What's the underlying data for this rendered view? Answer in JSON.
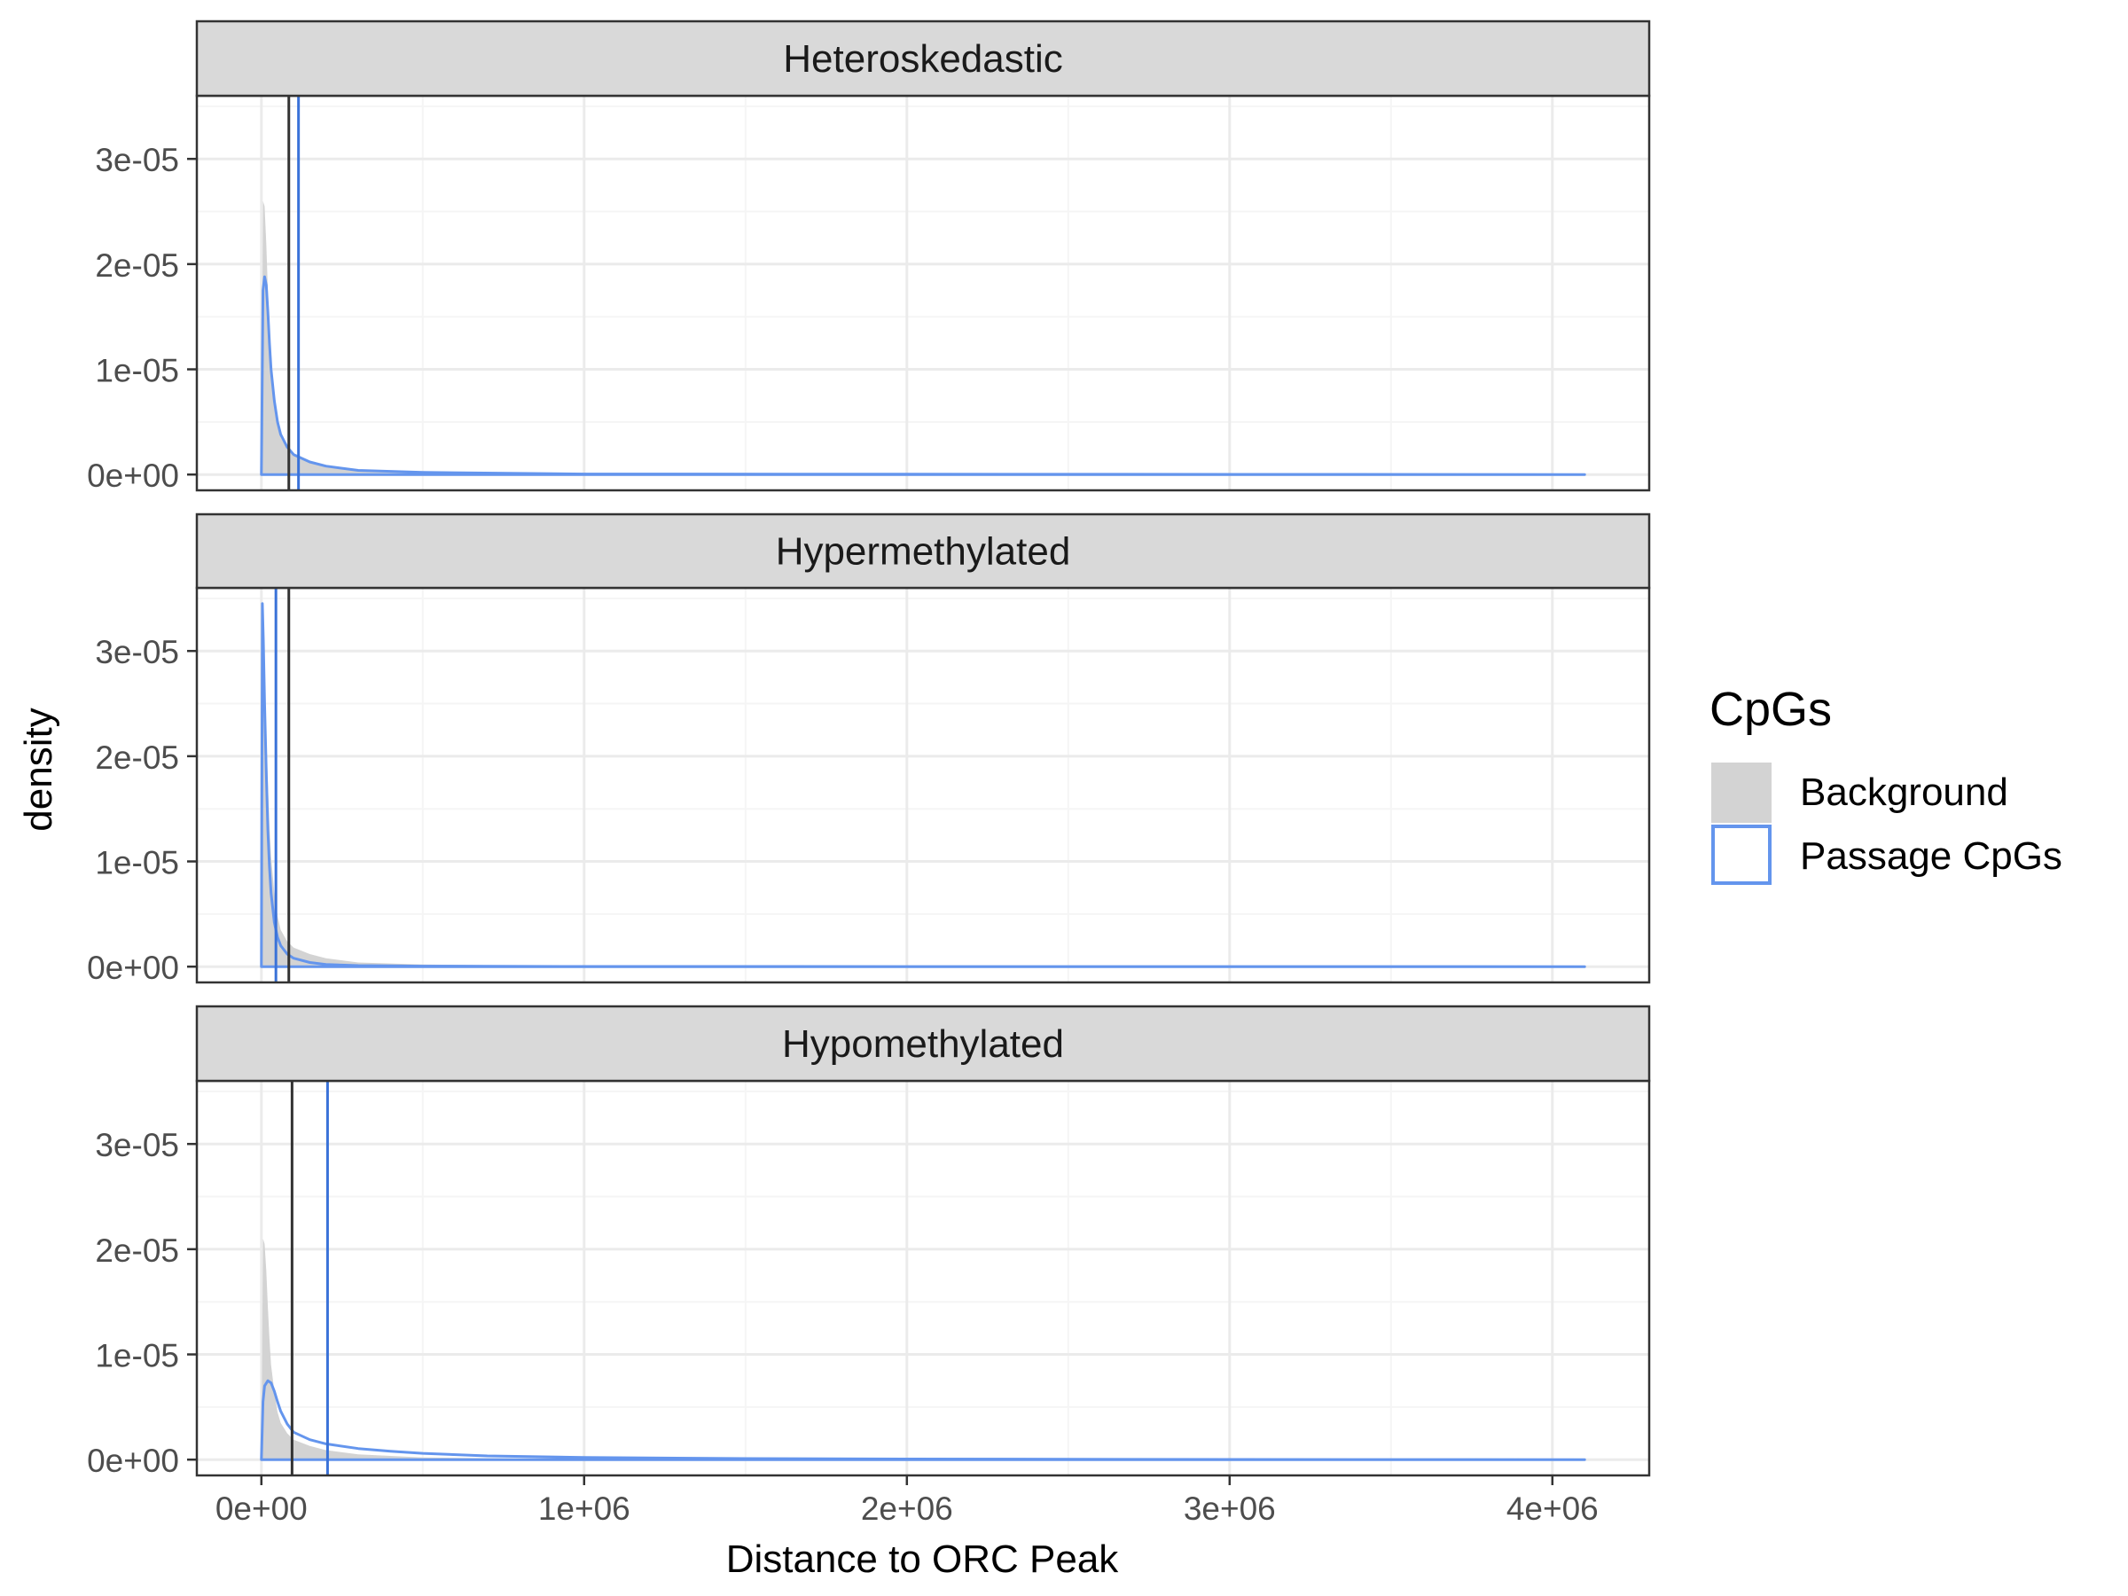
{
  "colors": {
    "background_fill": "#d3d3d3",
    "passage_line": "#6495ed",
    "background_median": "#333333",
    "passage_median": "#3a72d8",
    "strip_fill": "#d9d9d9",
    "grid_major": "#ebebeb",
    "grid_minor": "#f5f5f5",
    "panel_border": "#333333"
  },
  "chart_data": {
    "type": "area",
    "xlabel": "Distance to ORC Peak",
    "ylabel": "density",
    "xlim": [
      -200000,
      4300000
    ],
    "ylim": [
      -1.5e-06,
      3.6e-05
    ],
    "x_ticks": [
      0,
      1000000,
      2000000,
      3000000,
      4000000
    ],
    "x_tick_labels": [
      "0e+00",
      "1e+06",
      "2e+06",
      "3e+06",
      "4e+06"
    ],
    "y_ticks": [
      0,
      1e-05,
      2e-05,
      3e-05
    ],
    "y_tick_labels": [
      "0e+00",
      "1e-05",
      "2e-05",
      "3e-05"
    ],
    "grid": true,
    "legend": {
      "title": "CpGs",
      "position": "right",
      "entries": [
        "Background",
        "Passage CpGs"
      ]
    },
    "panels": [
      {
        "strip": "Heteroskedastic",
        "background_median": 85000,
        "passage_median": 115000,
        "series": [
          {
            "name": "Background",
            "x": [
              0,
              5000,
              10000,
              15000,
              20000,
              25000,
              30000,
              40000,
              50000,
              60000,
              80000,
              100000,
              150000,
              200000,
              300000,
              500000,
              1000000,
              4100000
            ],
            "y": [
              0,
              2.6e-05,
              2.55e-05,
              2.2e-05,
              1.75e-05,
              1.35e-05,
              1.05e-05,
              7e-06,
              4.8e-06,
              3.5e-06,
              2.4e-06,
              1.8e-06,
              1.2e-06,
              8e-07,
              4e-07,
              2e-07,
              5e-08,
              0
            ]
          },
          {
            "name": "Passage CpGs",
            "x": [
              0,
              5000,
              10000,
              15000,
              20000,
              25000,
              30000,
              40000,
              50000,
              60000,
              80000,
              100000,
              150000,
              200000,
              300000,
              500000,
              1000000,
              4100000
            ],
            "y": [
              0,
              1.75e-05,
              1.88e-05,
              1.8e-05,
              1.55e-05,
              1.25e-05,
              1e-05,
              7e-06,
              5e-06,
              3.8e-06,
              2.6e-06,
              1.9e-06,
              1.2e-06,
              8e-07,
              4e-07,
              2e-07,
              5e-08,
              0
            ]
          }
        ]
      },
      {
        "strip": "Hypermethylated",
        "background_median": 85000,
        "passage_median": 45000,
        "series": [
          {
            "name": "Background",
            "x": [
              0,
              5000,
              10000,
              15000,
              20000,
              25000,
              30000,
              40000,
              50000,
              60000,
              80000,
              100000,
              150000,
              200000,
              300000,
              500000,
              1000000,
              4100000
            ],
            "y": [
              0,
              2.6e-05,
              2.55e-05,
              2.2e-05,
              1.75e-05,
              1.35e-05,
              1.05e-05,
              7e-06,
              4.8e-06,
              3.5e-06,
              2.4e-06,
              1.8e-06,
              1.2e-06,
              8e-07,
              4e-07,
              2e-07,
              5e-08,
              0
            ]
          },
          {
            "name": "Passage CpGs",
            "x": [
              0,
              3000,
              6000,
              10000,
              15000,
              20000,
              25000,
              30000,
              40000,
              50000,
              60000,
              80000,
              100000,
              150000,
              200000,
              300000,
              500000,
              1000000,
              4100000
            ],
            "y": [
              0,
              3.45e-05,
              3.1e-05,
              2.5e-05,
              1.85e-05,
              1.3e-05,
              9.5e-06,
              7e-06,
              4.2e-06,
              2.8e-06,
              2e-06,
              1.2e-06,
              8e-07,
              4e-07,
              2e-07,
              1e-07,
              5e-08,
              2e-08,
              0
            ]
          }
        ]
      },
      {
        "strip": "Hypomethylated",
        "background_median": 95000,
        "passage_median": 205000,
        "series": [
          {
            "name": "Background",
            "x": [
              0,
              5000,
              10000,
              15000,
              20000,
              25000,
              30000,
              40000,
              50000,
              60000,
              80000,
              100000,
              150000,
              200000,
              300000,
              500000,
              1000000,
              4100000
            ],
            "y": [
              0,
              2.1e-05,
              2.05e-05,
              1.8e-05,
              1.45e-05,
              1.15e-05,
              9e-06,
              6.5e-06,
              4.5e-06,
              3.5e-06,
              2.5e-06,
              1.9e-06,
              1.3e-06,
              9e-07,
              5e-07,
              2e-07,
              5e-08,
              0
            ]
          },
          {
            "name": "Passage CpGs",
            "x": [
              0,
              5000,
              10000,
              20000,
              30000,
              40000,
              50000,
              60000,
              80000,
              100000,
              150000,
              200000,
              300000,
              400000,
              500000,
              700000,
              1000000,
              1500000,
              2000000,
              3000000,
              4100000
            ],
            "y": [
              0,
              5.5e-06,
              7e-06,
              7.5e-06,
              7.3e-06,
              6.5e-06,
              5.5e-06,
              4.6e-06,
              3.4e-06,
              2.6e-06,
              1.9e-06,
              1.5e-06,
              1.05e-06,
              8e-07,
              6e-07,
              3.5e-07,
              2e-07,
              1e-07,
              6e-08,
              2e-08,
              0
            ]
          }
        ]
      }
    ]
  }
}
